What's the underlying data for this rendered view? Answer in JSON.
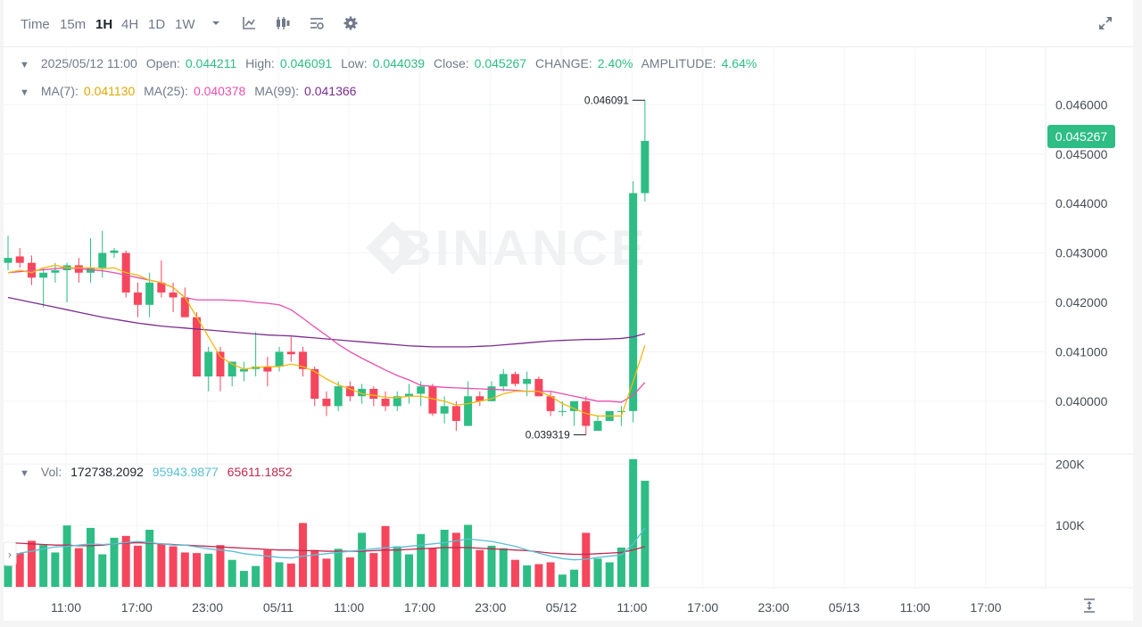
{
  "toolbar": {
    "intervals": [
      "Time",
      "15m",
      "1H",
      "4H",
      "1D",
      "1W"
    ],
    "active": "1H"
  },
  "colors": {
    "up": "#2ebd85",
    "down": "#f6465d",
    "ma7": "#f0b90b",
    "ma25": "#e84fad",
    "ma99": "#7b2d8e",
    "vol_ma1": "#59bfd5",
    "vol_ma2": "#c2294f"
  },
  "icons": [
    "chevron-down-icon",
    "line-chart-icon",
    "candlestick-icon",
    "indicator-icon",
    "gear-icon",
    "expand-icon",
    "scale-toggle-icon"
  ],
  "watermark": "BINANCE",
  "ohlc_legend": {
    "date": "2025/05/12 11:00",
    "open_label": "Open:",
    "open": "0.044211",
    "high_label": "High:",
    "high": "0.046091",
    "low_label": "Low:",
    "low": "0.044039",
    "close_label": "Close:",
    "close": "0.045267",
    "change_label": "CHANGE:",
    "change": "2.40%",
    "amplitude_label": "AMPLITUDE:",
    "amplitude": "4.64%"
  },
  "ma_legend": {
    "ma7_label": "MA(7):",
    "ma7": "0.041130",
    "ma25_label": "MA(25):",
    "ma25": "0.040378",
    "ma99_label": "MA(99):",
    "ma99": "0.041366"
  },
  "vol_legend": {
    "label": "Vol:",
    "value": "172738.2092",
    "ma1": "95943.9877",
    "ma2": "65611.1852"
  },
  "current_price": "0.045267",
  "chart_data": {
    "type": "candlestick",
    "price_axis": {
      "ticks": [
        "0.046000",
        "0.045000",
        "0.044000",
        "0.043000",
        "0.042000",
        "0.041000",
        "0.040000"
      ],
      "range": [
        0.03895,
        0.04718
      ]
    },
    "volume_axis": {
      "ticks": [
        "200K",
        "100K"
      ],
      "range": [
        0,
        212000
      ]
    },
    "time_ticks": [
      "11:00",
      "17:00",
      "23:00",
      "05/11",
      "11:00",
      "17:00",
      "23:00",
      "05/12",
      "11:00",
      "17:00",
      "23:00",
      "05/13",
      "11:00",
      "17:00"
    ],
    "high_marker": "0.046091",
    "low_marker": "0.039319",
    "candles": [
      {
        "o": 0.0428,
        "h": 0.04335,
        "l": 0.04265,
        "c": 0.0429,
        "v": 62000
      },
      {
        "o": 0.04293,
        "h": 0.0431,
        "l": 0.0427,
        "c": 0.0428,
        "v": 55000
      },
      {
        "o": 0.0428,
        "h": 0.04295,
        "l": 0.04235,
        "c": 0.0425,
        "v": 75000
      },
      {
        "o": 0.0425,
        "h": 0.0427,
        "l": 0.0419,
        "c": 0.0426,
        "v": 68000
      },
      {
        "o": 0.0426,
        "h": 0.0428,
        "l": 0.0424,
        "c": 0.04265,
        "v": 56000
      },
      {
        "o": 0.04265,
        "h": 0.0428,
        "l": 0.042,
        "c": 0.04275,
        "v": 100000
      },
      {
        "o": 0.04275,
        "h": 0.0429,
        "l": 0.0424,
        "c": 0.0426,
        "v": 63000
      },
      {
        "o": 0.0426,
        "h": 0.0433,
        "l": 0.0424,
        "c": 0.0427,
        "v": 96000
      },
      {
        "o": 0.0427,
        "h": 0.04345,
        "l": 0.0425,
        "c": 0.043,
        "v": 53000
      },
      {
        "o": 0.043,
        "h": 0.0431,
        "l": 0.0429,
        "c": 0.04305,
        "v": 80000
      },
      {
        "o": 0.043,
        "h": 0.04305,
        "l": 0.0421,
        "c": 0.0422,
        "v": 83000
      },
      {
        "o": 0.0422,
        "h": 0.0424,
        "l": 0.0417,
        "c": 0.04195,
        "v": 67000
      },
      {
        "o": 0.04195,
        "h": 0.0426,
        "l": 0.0417,
        "c": 0.0424,
        "v": 93000
      },
      {
        "o": 0.0424,
        "h": 0.04285,
        "l": 0.0421,
        "c": 0.0422,
        "v": 70000
      },
      {
        "o": 0.0422,
        "h": 0.0424,
        "l": 0.0418,
        "c": 0.0421,
        "v": 66000
      },
      {
        "o": 0.0421,
        "h": 0.0423,
        "l": 0.0417,
        "c": 0.0417,
        "v": 56000
      },
      {
        "o": 0.0417,
        "h": 0.0418,
        "l": 0.0405,
        "c": 0.0405,
        "v": 55000
      },
      {
        "o": 0.0405,
        "h": 0.0411,
        "l": 0.0402,
        "c": 0.041,
        "v": 54000
      },
      {
        "o": 0.041,
        "h": 0.0411,
        "l": 0.0402,
        "c": 0.0405,
        "v": 68000
      },
      {
        "o": 0.0405,
        "h": 0.0408,
        "l": 0.0403,
        "c": 0.0408,
        "v": 44000
      },
      {
        "o": 0.0406,
        "h": 0.0408,
        "l": 0.0404,
        "c": 0.04065,
        "v": 26000
      },
      {
        "o": 0.04065,
        "h": 0.0414,
        "l": 0.0405,
        "c": 0.0407,
        "v": 34000
      },
      {
        "o": 0.0407,
        "h": 0.0409,
        "l": 0.0403,
        "c": 0.0406,
        "v": 60000
      },
      {
        "o": 0.0407,
        "h": 0.0411,
        "l": 0.0406,
        "c": 0.041,
        "v": 40000
      },
      {
        "o": 0.041,
        "h": 0.0413,
        "l": 0.0408,
        "c": 0.04095,
        "v": 38000
      },
      {
        "o": 0.041,
        "h": 0.0411,
        "l": 0.0405,
        "c": 0.04065,
        "v": 104000
      },
      {
        "o": 0.04065,
        "h": 0.0407,
        "l": 0.0399,
        "c": 0.04005,
        "v": 60000
      },
      {
        "o": 0.04005,
        "h": 0.0402,
        "l": 0.0397,
        "c": 0.0399,
        "v": 46000
      },
      {
        "o": 0.0399,
        "h": 0.0404,
        "l": 0.0398,
        "c": 0.0403,
        "v": 62000
      },
      {
        "o": 0.0403,
        "h": 0.0404,
        "l": 0.04,
        "c": 0.0401,
        "v": 48000
      },
      {
        "o": 0.0401,
        "h": 0.04035,
        "l": 0.03995,
        "c": 0.04025,
        "v": 88000
      },
      {
        "o": 0.04025,
        "h": 0.0403,
        "l": 0.0399,
        "c": 0.04005,
        "v": 55000
      },
      {
        "o": 0.04005,
        "h": 0.0402,
        "l": 0.0398,
        "c": 0.0399,
        "v": 99000
      },
      {
        "o": 0.0399,
        "h": 0.0402,
        "l": 0.0398,
        "c": 0.0401,
        "v": 66000
      },
      {
        "o": 0.0401,
        "h": 0.04035,
        "l": 0.03995,
        "c": 0.04015,
        "v": 53000
      },
      {
        "o": 0.04015,
        "h": 0.0404,
        "l": 0.0399,
        "c": 0.0403,
        "v": 86000
      },
      {
        "o": 0.0403,
        "h": 0.04035,
        "l": 0.0397,
        "c": 0.03975,
        "v": 63000
      },
      {
        "o": 0.03975,
        "h": 0.0401,
        "l": 0.03955,
        "c": 0.0399,
        "v": 93000
      },
      {
        "o": 0.0399,
        "h": 0.04,
        "l": 0.0394,
        "c": 0.0396,
        "v": 88000
      },
      {
        "o": 0.0395,
        "h": 0.0404,
        "l": 0.0395,
        "c": 0.0401,
        "v": 101000
      },
      {
        "o": 0.0401,
        "h": 0.0402,
        "l": 0.0399,
        "c": 0.04,
        "v": 60000
      },
      {
        "o": 0.04,
        "h": 0.0404,
        "l": 0.04,
        "c": 0.0403,
        "v": 67000
      },
      {
        "o": 0.0403,
        "h": 0.04065,
        "l": 0.0402,
        "c": 0.04055,
        "v": 63000
      },
      {
        "o": 0.04055,
        "h": 0.0406,
        "l": 0.0403,
        "c": 0.04035,
        "v": 44000
      },
      {
        "o": 0.04035,
        "h": 0.0406,
        "l": 0.0401,
        "c": 0.04045,
        "v": 35000
      },
      {
        "o": 0.04045,
        "h": 0.0405,
        "l": 0.0401,
        "c": 0.0401,
        "v": 37000
      },
      {
        "o": 0.0401,
        "h": 0.0402,
        "l": 0.0397,
        "c": 0.0398,
        "v": 40000
      },
      {
        "o": 0.0398,
        "h": 0.04,
        "l": 0.0397,
        "c": 0.0398,
        "v": 20000
      },
      {
        "o": 0.0398,
        "h": 0.04,
        "l": 0.0395,
        "c": 0.04,
        "v": 28000
      },
      {
        "o": 0.04,
        "h": 0.0401,
        "l": 0.03932,
        "c": 0.0395,
        "v": 88000
      },
      {
        "o": 0.0394,
        "h": 0.0397,
        "l": 0.0394,
        "c": 0.0396,
        "v": 46000
      },
      {
        "o": 0.0396,
        "h": 0.0398,
        "l": 0.0396,
        "c": 0.0398,
        "v": 40000
      },
      {
        "o": 0.0398,
        "h": 0.0399,
        "l": 0.0395,
        "c": 0.0398,
        "v": 64000
      },
      {
        "o": 0.0398,
        "h": 0.04445,
        "l": 0.03957,
        "c": 0.04421,
        "v": 208000
      },
      {
        "o": 0.04421,
        "h": 0.046091,
        "l": 0.044039,
        "c": 0.045267,
        "v": 172738
      }
    ],
    "ma7": [
      0.0426,
      0.04265,
      0.0426,
      0.0427,
      0.04275,
      0.0427,
      0.0427,
      0.0427,
      0.04268,
      0.0427,
      0.0426,
      0.04255,
      0.04245,
      0.0424,
      0.0423,
      0.0421,
      0.0417,
      0.0413,
      0.0409,
      0.04075,
      0.04065,
      0.04068,
      0.0407,
      0.0407,
      0.04075,
      0.0407,
      0.0406,
      0.04045,
      0.04033,
      0.04025,
      0.04015,
      0.04012,
      0.04008,
      0.04007,
      0.0401,
      0.0401,
      0.04005,
      0.04,
      0.03992,
      0.03995,
      0.04,
      0.04005,
      0.04015,
      0.0402,
      0.0402,
      0.0402,
      0.0401,
      0.03995,
      0.03985,
      0.03975,
      0.0397,
      0.0397,
      0.0397,
      0.0404,
      0.04113
    ],
    "ma25": [
      0.0426,
      0.04262,
      0.04264,
      0.04266,
      0.04268,
      0.0427,
      0.04268,
      0.04266,
      0.04264,
      0.0426,
      0.04255,
      0.0425,
      0.04245,
      0.0424,
      0.0423,
      0.0421,
      0.04205,
      0.04205,
      0.04205,
      0.04204,
      0.04203,
      0.042,
      0.04198,
      0.04195,
      0.04185,
      0.04168,
      0.0415,
      0.04133,
      0.04115,
      0.041,
      0.04087,
      0.04075,
      0.04063,
      0.04052,
      0.04043,
      0.04032,
      0.0403,
      0.04028,
      0.04027,
      0.04026,
      0.04025,
      0.04024,
      0.04023,
      0.04022,
      0.0402,
      0.0402,
      0.0402,
      0.04015,
      0.0401,
      0.04005,
      0.04,
      0.04,
      0.03998,
      0.04012,
      0.04038
    ],
    "ma99": [
      0.0421,
      0.04205,
      0.042,
      0.04195,
      0.0419,
      0.04185,
      0.0418,
      0.04175,
      0.0417,
      0.04166,
      0.04162,
      0.04158,
      0.04155,
      0.04152,
      0.0415,
      0.04148,
      0.04146,
      0.04144,
      0.04142,
      0.0414,
      0.04138,
      0.04136,
      0.04134,
      0.04133,
      0.04132,
      0.0413,
      0.04128,
      0.04126,
      0.04124,
      0.04122,
      0.0412,
      0.04118,
      0.04116,
      0.04114,
      0.04112,
      0.04111,
      0.0411,
      0.0411,
      0.0411,
      0.0411,
      0.04111,
      0.04112,
      0.04114,
      0.04116,
      0.04118,
      0.0412,
      0.04122,
      0.04123,
      0.04124,
      0.04125,
      0.04125,
      0.04126,
      0.04127,
      0.0413,
      0.041366
    ],
    "vol_ma1": [
      45000,
      55000,
      58000,
      62000,
      65000,
      66000,
      68000,
      70000,
      69000,
      70000,
      72000,
      74000,
      72000,
      70000,
      68000,
      68000,
      65000,
      62000,
      60000,
      58000,
      54000,
      52000,
      50000,
      48000,
      47000,
      50000,
      52000,
      54000,
      56000,
      58000,
      60000,
      62000,
      64000,
      64000,
      66000,
      68000,
      70000,
      72000,
      75000,
      78000,
      76000,
      74000,
      70000,
      66000,
      60000,
      55000,
      50000,
      46000,
      44000,
      45000,
      48000,
      50000,
      52000,
      70000,
      95944
    ],
    "vol_ma2": [
      72000,
      71000,
      70000,
      69000,
      68000,
      68000,
      67000,
      67000,
      68000,
      70000,
      71000,
      72000,
      71000,
      70000,
      69000,
      68000,
      67000,
      66000,
      65000,
      64000,
      63000,
      62000,
      61000,
      60000,
      60000,
      59000,
      59000,
      58000,
      58000,
      58000,
      58000,
      59000,
      60000,
      60000,
      61000,
      62000,
      63000,
      64000,
      64000,
      64000,
      63000,
      62000,
      61000,
      60000,
      59000,
      57000,
      55000,
      54000,
      53000,
      53000,
      54000,
      55000,
      56000,
      60000,
      65611
    ]
  }
}
